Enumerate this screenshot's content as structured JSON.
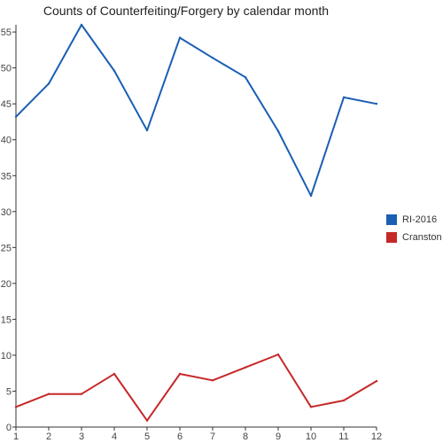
{
  "chart_data": {
    "type": "line",
    "title": "Counts of Counterfeiting/Forgery by calendar month",
    "xlabel": "",
    "ylabel": "",
    "x": [
      1,
      2,
      3,
      4,
      5,
      6,
      7,
      8,
      9,
      10,
      11,
      12
    ],
    "xlim": [
      1,
      12
    ],
    "ylim": [
      0,
      56
    ],
    "yticks": [
      0,
      5,
      10,
      15,
      20,
      25,
      30,
      35,
      40,
      45,
      50,
      55
    ],
    "grid": false,
    "legend_position": "right",
    "series": [
      {
        "name": "RI-2016",
        "color": "#1a5fb4",
        "values": [
          43.2,
          47.8,
          56,
          49.6,
          41.3,
          54.2,
          51.4,
          48.7,
          41.2,
          32.2,
          45.9,
          45
        ]
      },
      {
        "name": "Cranston",
        "color": "#c62828",
        "values": [
          2.8,
          4.6,
          4.6,
          7.4,
          0.9,
          7.4,
          6.5,
          8.3,
          10.1,
          2.8,
          3.7,
          6.4
        ]
      }
    ]
  }
}
